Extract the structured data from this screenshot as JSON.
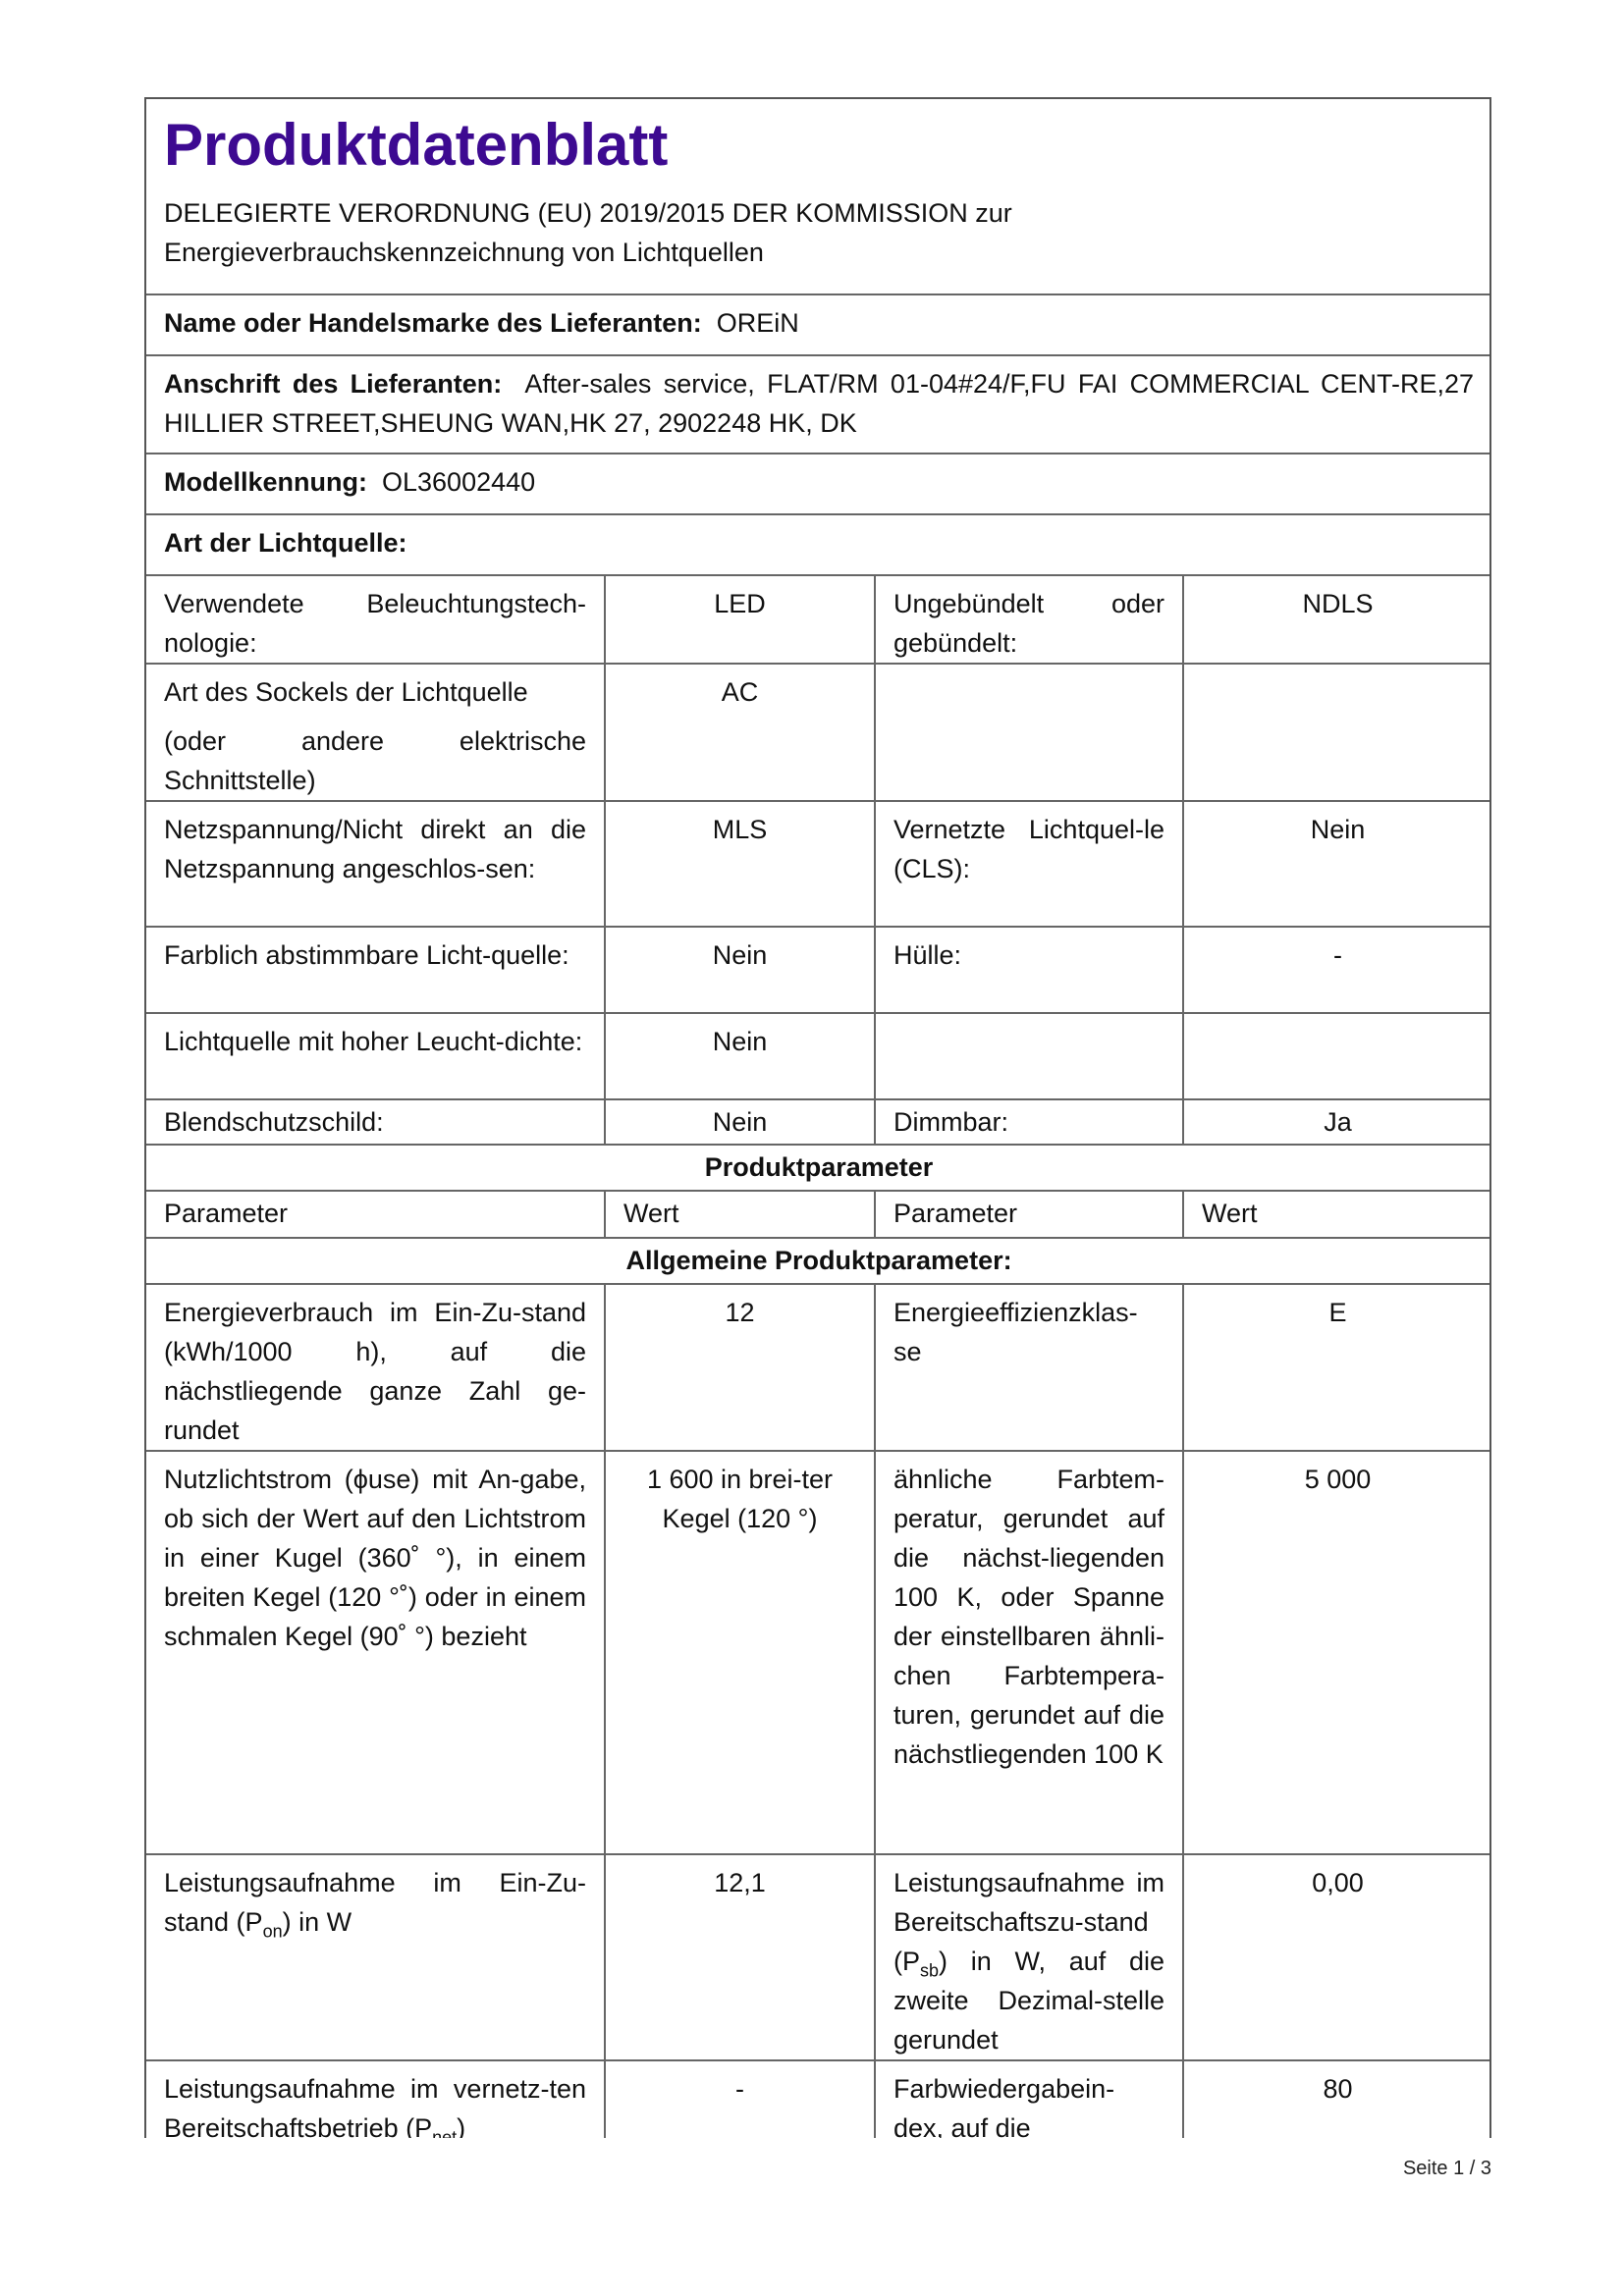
{
  "header": {
    "title": "Produktdatenblatt",
    "subtitle_line1": "DELEGIERTE VERORDNUNG (EU) 2019/2015 DER KOMMISSION zur",
    "subtitle_line2": "Energieverbrauchskennzeichnung von Lichtquellen"
  },
  "supplier": {
    "name_label": "Name oder Handelsmarke des Lieferanten:",
    "name_value": "OREiN",
    "address_label": "Anschrift des Lieferanten:",
    "address_value": "After-sales service, FLAT/RM 01-04#24/F,FU FAI COMMERCIAL CENT-RE,27 HILLIER STREET,SHEUNG WAN,HK 27, 2902248 HK, DK",
    "model_label": "Modellkennung:",
    "model_value": "OL36002440",
    "type_label": "Art der Lichtquelle:"
  },
  "light_source_rows": [
    {
      "p1": "Verwendete Beleuchtungstech-nologie:",
      "v1": "LED",
      "p2": "Ungebündelt oder gebündelt:",
      "v2": "NDLS"
    },
    {
      "p1": "Art des Sockels der Lichtquelle",
      "p1b": "(oder andere elektrische Schnittstelle)",
      "v1": "AC",
      "p2": "",
      "v2": ""
    },
    {
      "p1": "Netzspannung/Nicht direkt an die Netzspannung angeschlos-sen:",
      "v1": "MLS",
      "p2": "Vernetzte Lichtquel-le (CLS):",
      "v2": "Nein"
    },
    {
      "p1": "Farblich abstimmbare Licht-quelle:",
      "v1": "Nein",
      "p2": "Hülle:",
      "v2": "-"
    },
    {
      "p1": "Lichtquelle mit hoher Leucht-dichte:",
      "v1": "Nein",
      "p2": "",
      "v2": ""
    },
    {
      "p1": "Blendschutzschild:",
      "v1": "Nein",
      "p2": "Dimmbar:",
      "v2": "Ja"
    }
  ],
  "params": {
    "section_title": "Produktparameter",
    "col_param": "Parameter",
    "col_value": "Wert",
    "general_title": "Allgemeine Produktparameter:",
    "rows": [
      {
        "p1": "Energieverbrauch im Ein-Zu-stand (kWh/1000 h), auf die nächstliegende ganze Zahl ge-rundet",
        "v1": "12",
        "p2": "Energieeffizienzklas-se",
        "v2": "E"
      },
      {
        "p1": "Nutzlichtstrom (ϕuse) mit An-gabe, ob sich der Wert auf den Lichtstrom in einer Kugel (360˚ °), in einem breiten Kegel (120 °˚) oder in einem schmalen Kegel (90˚ °) bezieht",
        "v1": "1 600 in brei-ter Kegel (120 °)",
        "p2": "ähnliche Farbtem-peratur, gerundet auf die nächst-liegenden 100 K, oder Spanne der einstellbaren ähnli-chen Farbtempera-turen, gerundet auf die nächstliegenden 100 K",
        "v2": "5 000"
      },
      {
        "p1": "Leistungsaufnahme im Ein-Zu-stand (P",
        "p1sub": "on",
        "p1end": ") in W",
        "v1": "12,1",
        "p2": "Leistungsaufnahme im Bereitschaftszu-stand (P",
        "p2sub": "sb",
        "p2end": ") in W, auf die zweite Dezimal-stelle gerundet",
        "v2": "0,00"
      },
      {
        "p1": "Leistungsaufnahme im vernetz-ten Bereitschaftsbetrieb (P",
        "p1sub": "net",
        "p1end": ")",
        "v1": "-",
        "p2": "Farbwiedergabein-dex, auf die",
        "v2": "80"
      }
    ]
  },
  "footer": {
    "page": "Seite 1 / 3"
  }
}
